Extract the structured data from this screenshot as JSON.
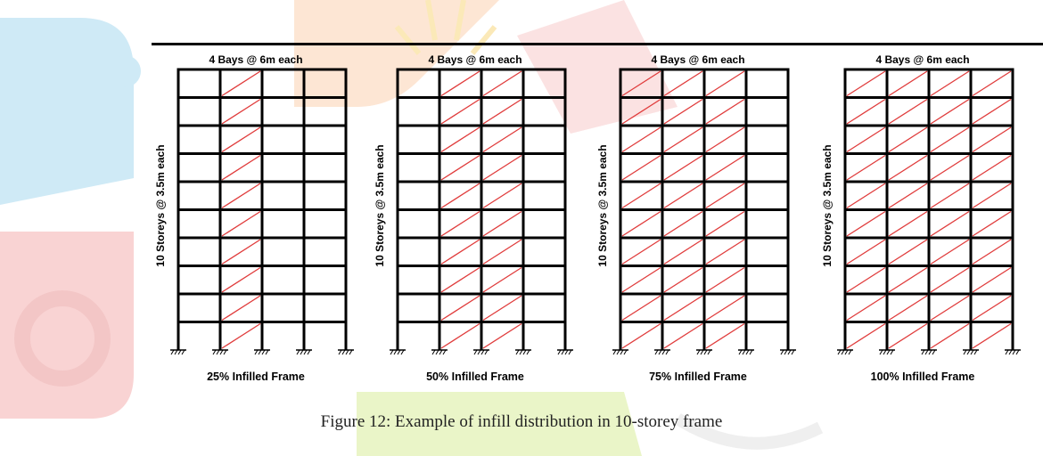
{
  "watermark_colors": {
    "blue": "#cfeaf6",
    "orange": "#fde6d4",
    "yellow_green": "#eaf5c8",
    "red": "#f9d3d3",
    "grey": "#efefef"
  },
  "diagram": {
    "bays": 4,
    "storeys": 10,
    "beam_color": "#000000",
    "infill_color": "#e03b3b",
    "frames": [
      {
        "bays_label": "4 Bays @ 6m each",
        "storeys_label": "10 Storeys @ 3.5m each",
        "frame_label": "25% Infilled Frame",
        "infilled_bays": [
          2
        ]
      },
      {
        "bays_label": "4 Bays @ 6m each",
        "storeys_label": "10 Storeys @ 3.5m each",
        "frame_label": "50% Infilled Frame",
        "infilled_bays": [
          2,
          3
        ]
      },
      {
        "bays_label": "4 Bays @ 6m each",
        "storeys_label": "10 Storeys @ 3.5m each",
        "frame_label": "75% Infilled Frame",
        "infilled_bays": [
          1,
          2,
          3
        ]
      },
      {
        "bays_label": "4 Bays @ 6m each",
        "storeys_label": "10 Storeys @ 3.5m each",
        "frame_label": "100% Infilled Frame",
        "infilled_bays": [
          1,
          2,
          3,
          4
        ]
      }
    ]
  },
  "caption": "Figure 12: Example of infill distribution in 10-storey frame"
}
